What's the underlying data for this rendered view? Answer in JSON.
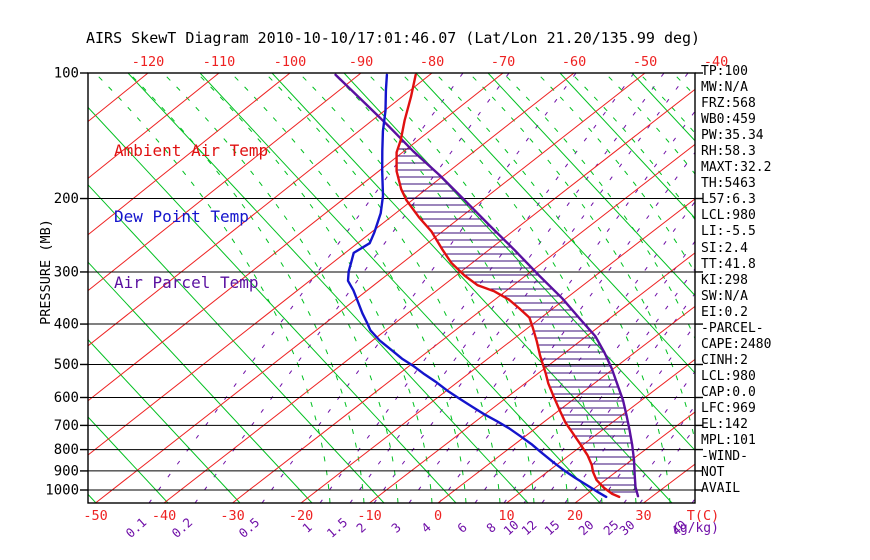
{
  "title": "AIRS SkewT Diagram 2010-10-10/17:01:46.07 (Lat/Lon 21.20/135.99 deg)",
  "legend": {
    "ambient": {
      "label": "Ambient Air Temp",
      "color": "#e01010"
    },
    "dewpoint": {
      "label": "Dew Point Temp",
      "color": "#1414cc"
    },
    "parcel": {
      "label": "Air Parcel Temp",
      "color": "#5a10a0"
    }
  },
  "colors": {
    "isotherm": "#ee2222",
    "dry_adiabat": "#00c020",
    "saturated_adiabat": "#00c020",
    "mixing_ratio": "#7010a8",
    "pressure_line": "#000000",
    "hatch": "#3a0d78",
    "ambient_curve": "#e01010",
    "dewpoint_curve": "#1414cc",
    "parcel_curve": "#5a10a0"
  },
  "axes": {
    "pressure": {
      "label": "PRESSURE (MB)",
      "ticks": [
        100,
        200,
        300,
        400,
        500,
        600,
        700,
        800,
        900,
        1000
      ]
    },
    "temp_top": {
      "ticks": [
        -120,
        -110,
        -100,
        -90,
        -80,
        -70,
        -60,
        -50,
        -40
      ]
    },
    "temp_bottom": {
      "ticks": [
        -50,
        -40,
        -30,
        -20,
        -10,
        0,
        10,
        20,
        30
      ],
      "unit_label": "T(C)"
    },
    "mixing_ratio": {
      "ticks": [
        0.1,
        0.2,
        0.5,
        1,
        1.5,
        2,
        3,
        4,
        6,
        8,
        10,
        12,
        15,
        20,
        25,
        30,
        40
      ],
      "unit_label": "(g/kg)"
    }
  },
  "stats": [
    "TP:100",
    "MW:N/A",
    "FRZ:568",
    "WB0:459",
    "PW:35.34",
    "RH:58.3",
    "MAXT:32.2",
    "TH:5463",
    "L57:6.3",
    "LCL:980",
    "LI:-5.5",
    "SI:2.4",
    "TT:41.8",
    "KI:298",
    "SW:N/A",
    "EI:0.2",
    "-PARCEL-",
    "CAPE:2480",
    "CINH:2",
    "LCL:980",
    "CAP:0.0",
    "LFC:969",
    "EL:142",
    "MPL:101",
    "-WIND-",
    "NOT",
    "AVAIL"
  ],
  "chart_data": {
    "type": "line",
    "title": "AIRS SkewT Diagram 2010-10-10/17:01:46.07 (Lat/Lon 21.20/135.99 deg)",
    "xlabel": "Temperature (C), skewed axis",
    "ylabel": "PRESSURE (MB)",
    "y_scale": "log-pressure, 100 mb (top) to ~1075 mb (bottom)",
    "x_axis_top_ticks_c": [
      -120,
      -110,
      -100,
      -90,
      -80,
      -70,
      -60,
      -50,
      -40
    ],
    "x_axis_bottom_ticks_c": [
      -50,
      -40,
      -30,
      -20,
      -10,
      0,
      10,
      20,
      30
    ],
    "background": {
      "isotherms_c": {
        "start": -130,
        "end": 40,
        "step": 10
      },
      "mixing_ratio_lines_g_kg": [
        0.1,
        0.2,
        0.5,
        1,
        1.5,
        2,
        3,
        4,
        6,
        8,
        10,
        12,
        15,
        20,
        25,
        30,
        40
      ],
      "pressure_lines_mb": [
        100,
        200,
        300,
        400,
        500,
        600,
        700,
        800,
        900,
        1000
      ],
      "hatched_region": "CAPE area between ambient temperature and air parcel curves below the equilibrium level"
    },
    "series": [
      {
        "name": "Ambient Air Temp",
        "color": "#e01010",
        "points_p_t": [
          [
            101,
            -84.9
          ],
          [
            114,
            -81.4
          ],
          [
            130,
            -77.8
          ],
          [
            145,
            -74.6
          ],
          [
            155,
            -72.9
          ],
          [
            172,
            -69.3
          ],
          [
            190,
            -65.2
          ],
          [
            202,
            -62.3
          ],
          [
            222,
            -57.2
          ],
          [
            240,
            -52.7
          ],
          [
            264,
            -47.9
          ],
          [
            285,
            -43.9
          ],
          [
            306,
            -39.5
          ],
          [
            323,
            -35.7
          ],
          [
            334,
            -32.1
          ],
          [
            349,
            -28.5
          ],
          [
            367,
            -25.2
          ],
          [
            386,
            -22.0
          ],
          [
            405,
            -19.9
          ],
          [
            440,
            -16.4
          ],
          [
            476,
            -13.2
          ],
          [
            525,
            -9.0
          ],
          [
            555,
            -6.7
          ],
          [
            593,
            -3.7
          ],
          [
            644,
            0.1
          ],
          [
            688,
            3.2
          ],
          [
            731,
            6.4
          ],
          [
            777,
            9.6
          ],
          [
            825,
            12.7
          ],
          [
            871,
            15.2
          ],
          [
            905,
            16.7
          ],
          [
            947,
            18.8
          ],
          [
            989,
            21.4
          ],
          [
            1022,
            23.7
          ],
          [
            1039,
            25.3
          ]
        ]
      },
      {
        "name": "Dew Point Temp",
        "color": "#1414cc",
        "points_p_t": [
          [
            101,
            -89.1
          ],
          [
            110,
            -86.3
          ],
          [
            123,
            -82.5
          ],
          [
            138,
            -78.9
          ],
          [
            154,
            -75.2
          ],
          [
            172,
            -71.4
          ],
          [
            197,
            -66.6
          ],
          [
            217,
            -63.6
          ],
          [
            241,
            -60.9
          ],
          [
            256,
            -59.5
          ],
          [
            270,
            -60.0
          ],
          [
            285,
            -58.5
          ],
          [
            299,
            -57.2
          ],
          [
            315,
            -55.5
          ],
          [
            332,
            -52.9
          ],
          [
            351,
            -50.4
          ],
          [
            377,
            -47.2
          ],
          [
            399,
            -44.5
          ],
          [
            414,
            -42.8
          ],
          [
            438,
            -39.5
          ],
          [
            462,
            -35.9
          ],
          [
            484,
            -32.8
          ],
          [
            505,
            -29.6
          ],
          [
            528,
            -26.5
          ],
          [
            552,
            -23.2
          ],
          [
            580,
            -19.8
          ],
          [
            606,
            -16.5
          ],
          [
            632,
            -13.3
          ],
          [
            658,
            -10.2
          ],
          [
            684,
            -7.0
          ],
          [
            711,
            -3.9
          ],
          [
            743,
            -0.7
          ],
          [
            776,
            2.4
          ],
          [
            811,
            5.3
          ],
          [
            857,
            9.0
          ],
          [
            900,
            12.4
          ],
          [
            936,
            15.3
          ],
          [
            978,
            18.7
          ],
          [
            1012,
            21.3
          ],
          [
            1039,
            23.4
          ]
        ]
      },
      {
        "name": "Air Parcel Temp",
        "color": "#5a10a0",
        "points_p_t": [
          [
            101,
            -96.6
          ],
          [
            117,
            -87.5
          ],
          [
            134,
            -79.1
          ],
          [
            154,
            -70.7
          ],
          [
            176,
            -62.2
          ],
          [
            202,
            -53.8
          ],
          [
            232,
            -45.4
          ],
          [
            266,
            -37.0
          ],
          [
            306,
            -28.6
          ],
          [
            347,
            -20.9
          ],
          [
            388,
            -14.5
          ],
          [
            428,
            -8.8
          ],
          [
            468,
            -4.4
          ],
          [
            511,
            -0.3
          ],
          [
            561,
            3.8
          ],
          [
            609,
            7.4
          ],
          [
            662,
            10.8
          ],
          [
            719,
            14.1
          ],
          [
            780,
            17.3
          ],
          [
            847,
            20.4
          ],
          [
            921,
            23.4
          ],
          [
            984,
            25.8
          ],
          [
            1035,
            27.9
          ]
        ]
      }
    ],
    "legend_position": "top-left inside plot",
    "grid": "skew-T background grid (isotherms, dry/saturated adiabats, mixing ratio lines, log-pressure lines)"
  }
}
